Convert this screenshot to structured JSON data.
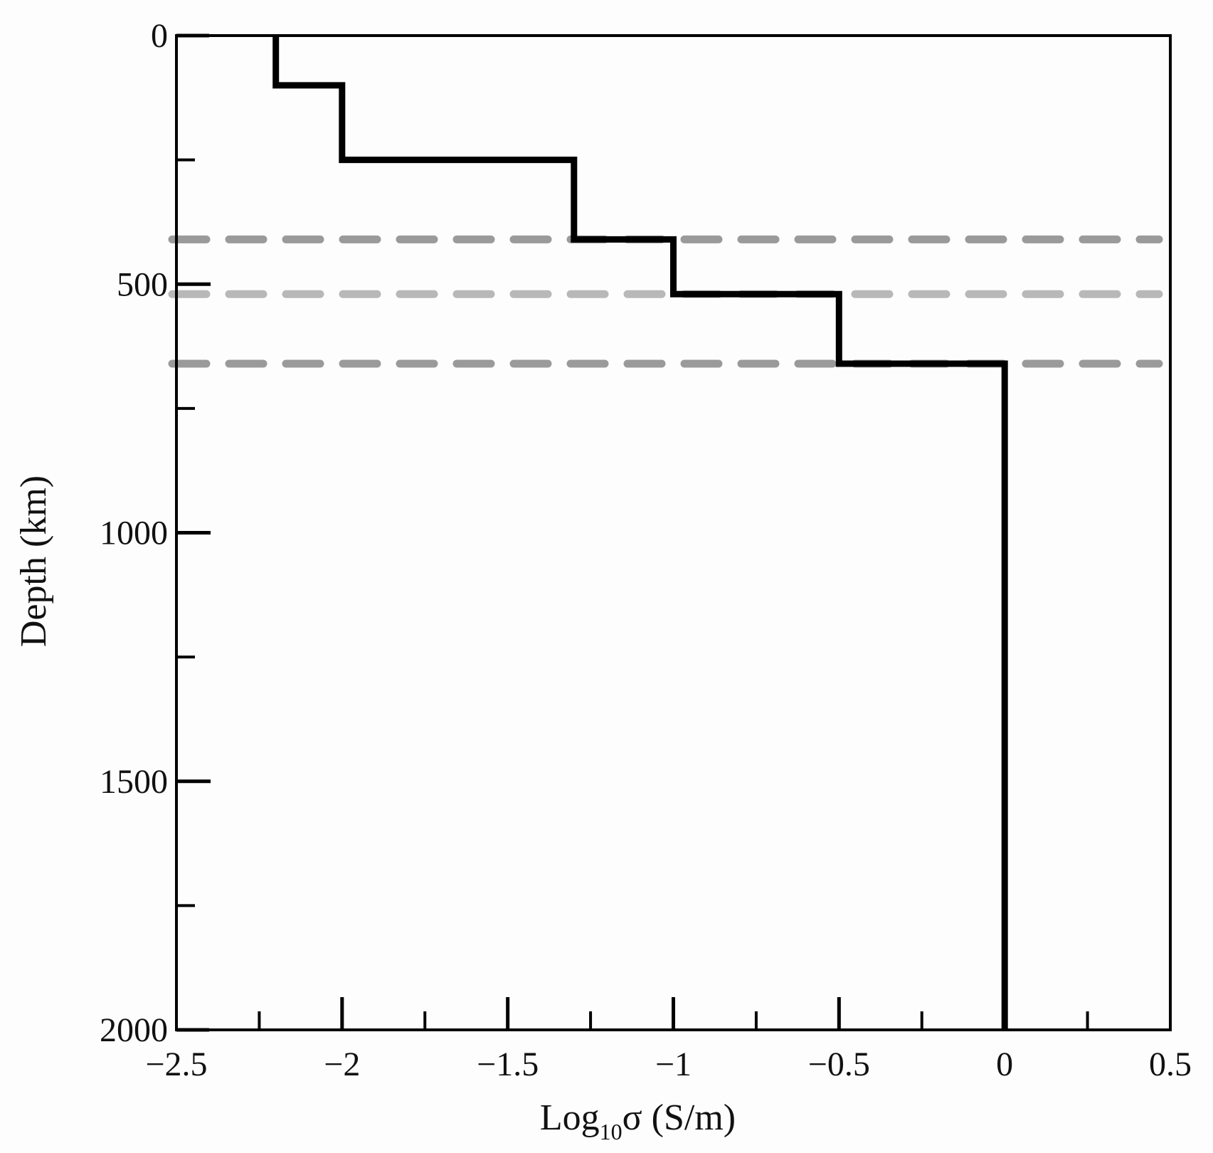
{
  "chart_data": {
    "type": "line",
    "title": "",
    "xlabel": {
      "prefix": "Log",
      "subscript": "10",
      "suffix": "σ (S/m)"
    },
    "ylabel": "Depth (km)",
    "xlim": [
      -2.5,
      0.5
    ],
    "ylim": [
      0,
      2000
    ],
    "y_inverted": true,
    "grid": false,
    "x_major_ticks": [
      -2.5,
      -2,
      -1.5,
      -1,
      -0.5,
      0,
      0.5
    ],
    "x_tick_labels": [
      "−2.5",
      "−2",
      "−1.5",
      "−1",
      "−0.5",
      "0",
      "0.5"
    ],
    "x_minor_ticks": [
      -2.25,
      -1.75,
      -1.25,
      -0.75,
      -0.25,
      0.25
    ],
    "y_major_ticks": [
      0,
      500,
      1000,
      1500,
      2000
    ],
    "y_tick_labels": [
      "0",
      "500",
      "1000",
      "1500",
      "2000"
    ],
    "y_minor_ticks": [
      250,
      750,
      1250,
      1750
    ],
    "series": [
      {
        "style": "step",
        "color": "#000000",
        "points": [
          {
            "x": -2.2,
            "y": 0
          },
          {
            "x": -2.2,
            "y": 100
          },
          {
            "x": -2.0,
            "y": 100
          },
          {
            "x": -2.0,
            "y": 250
          },
          {
            "x": -1.3,
            "y": 250
          },
          {
            "x": -1.3,
            "y": 410
          },
          {
            "x": -1.0,
            "y": 410
          },
          {
            "x": -1.0,
            "y": 520
          },
          {
            "x": -0.5,
            "y": 520
          },
          {
            "x": -0.5,
            "y": 660
          },
          {
            "x": 0.0,
            "y": 660
          },
          {
            "x": 0.0,
            "y": 2000
          }
        ]
      }
    ],
    "reference_lines": [
      {
        "orientation": "horizontal",
        "style": "dashed",
        "y": 410,
        "color": "#9a9a9a"
      },
      {
        "orientation": "horizontal",
        "style": "dashed",
        "y": 520,
        "color": "#b8b8b8"
      },
      {
        "orientation": "horizontal",
        "style": "dashed",
        "y": 660,
        "color": "#9a9a9a"
      }
    ]
  }
}
